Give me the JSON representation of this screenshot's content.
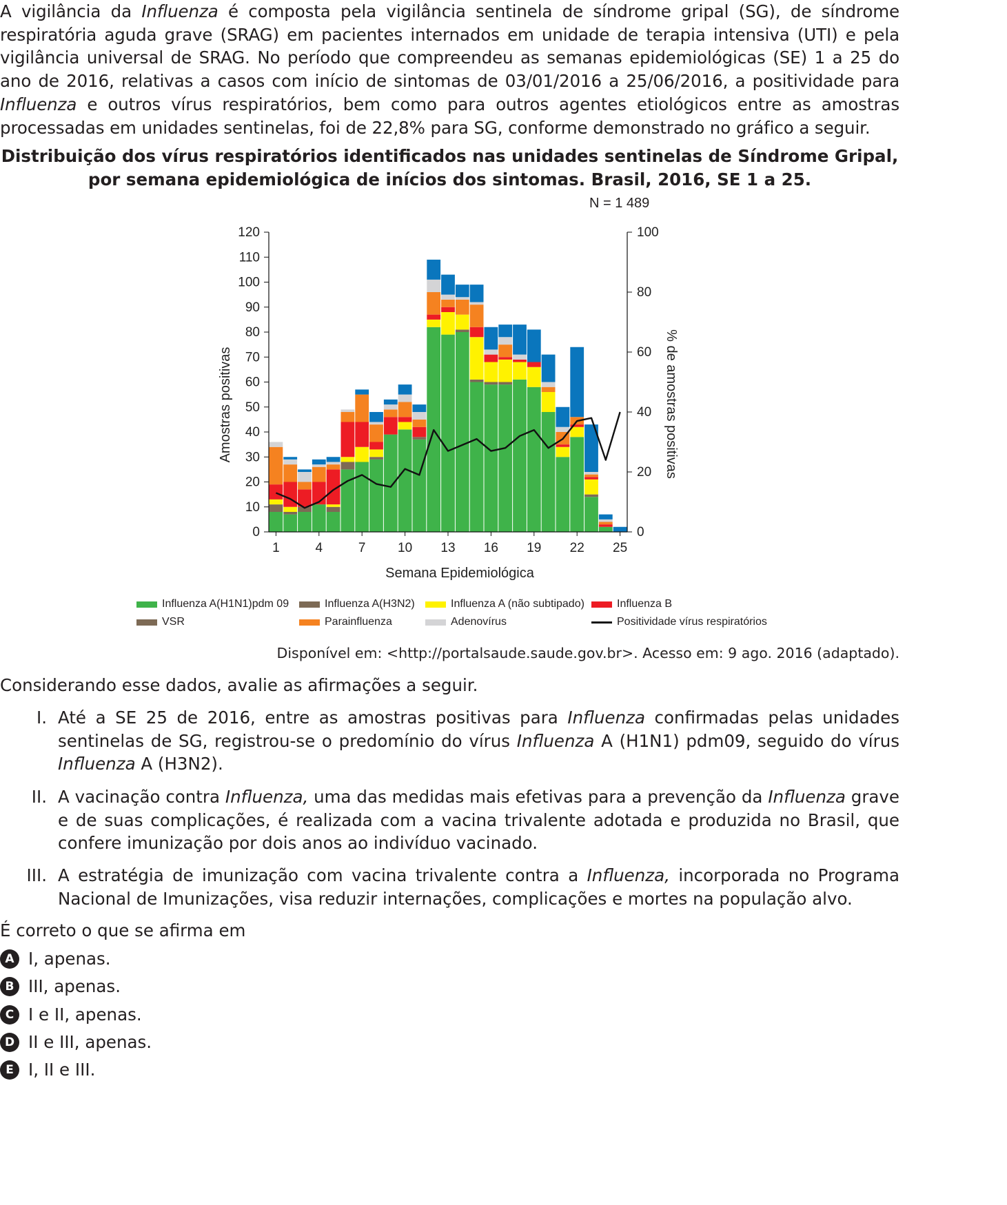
{
  "intro": {
    "p1": "A vigilância da ",
    "p2": "Influenza",
    "p3": " é composta pela vigilância sentinela de síndrome gripal (SG), de síndrome respiratória aguda grave (SRAG) em pacientes internados em unidade de terapia intensiva (UTI) e pela vigilância universal de SRAG. No período que compreendeu as semanas epidemiológicas (SE) 1 a 25 do ano de 2016, relativas a casos com início de sintomas de 03/01/2016 a 25/06/2016, a positividade para ",
    "p4": "Influenza",
    "p5": " e outros vírus respiratórios, bem como para outros agentes etiológicos entre as amostras processadas em unidades sentinelas, foi de 22,8% para SG, conforme demonstrado no gráfico a seguir."
  },
  "chart_title": {
    "line1": "Distribuição dos vírus respiratórios identificados nas unidades sentinelas de Síndrome Gripal,",
    "line2": "por semana epidemiológica de inícios dos sintomas. Brasil, 2016, SE 1 a 25."
  },
  "n_label": "N = 1 489",
  "chart_data": {
    "type": "bar",
    "stacked": true,
    "xlabel": "Semana Epidemiológica",
    "ylabel": "Amostras positivas",
    "y2label": "% de amostras positivas",
    "ylim": [
      0,
      120
    ],
    "y2lim": [
      0,
      100
    ],
    "yticks": [
      0,
      10,
      20,
      30,
      40,
      50,
      60,
      70,
      80,
      90,
      100,
      110,
      120
    ],
    "y2ticks": [
      0,
      20,
      40,
      60,
      80,
      100
    ],
    "x": [
      1,
      2,
      3,
      4,
      5,
      6,
      7,
      8,
      9,
      10,
      11,
      12,
      13,
      14,
      15,
      16,
      17,
      18,
      19,
      20,
      21,
      22,
      23,
      24,
      25
    ],
    "xticks": [
      1,
      4,
      7,
      10,
      13,
      16,
      19,
      22,
      25
    ],
    "grid": false,
    "legend_position": "bottom",
    "series": [
      {
        "name": "Influenza A(H1N1)pdm 09",
        "color": "#3fb34a",
        "values": [
          8,
          7,
          8,
          11,
          8,
          25,
          28,
          29,
          39,
          41,
          37,
          82,
          79,
          80,
          60,
          59,
          59,
          61,
          58,
          48,
          30,
          38,
          14,
          2,
          0
        ]
      },
      {
        "name": "Influenza A(H3N2)",
        "color": "#7d6a55",
        "values": [
          3,
          1,
          2,
          0,
          2,
          3,
          0,
          1,
          0,
          0,
          1,
          0,
          0,
          1,
          1,
          1,
          1,
          0,
          0,
          0,
          0,
          0,
          1,
          0,
          0
        ]
      },
      {
        "name": "VSR",
        "color": "#7d6a55",
        "values": [
          0,
          0,
          0,
          0,
          0,
          0,
          0,
          0,
          0,
          0,
          0,
          0,
          0,
          0,
          0,
          0,
          0,
          0,
          0,
          0,
          0,
          0,
          0,
          0,
          0
        ]
      },
      {
        "name": "Influenza A (não subtipado)",
        "color": "#fff200",
        "values": [
          2,
          2,
          0,
          0,
          1,
          2,
          6,
          3,
          0,
          3,
          0,
          3,
          9,
          6,
          17,
          8,
          9,
          7,
          8,
          8,
          4,
          4,
          6,
          0,
          0
        ]
      },
      {
        "name": "Influenza B",
        "color": "#ed1c24",
        "values": [
          6,
          10,
          7,
          9,
          14,
          14,
          10,
          3,
          7,
          2,
          4,
          2,
          2,
          0,
          4,
          3,
          1,
          1,
          2,
          0,
          1,
          1,
          1,
          1,
          0
        ]
      },
      {
        "name": "Parainfluenza",
        "color": "#f58220",
        "values": [
          15,
          7,
          3,
          6,
          2,
          4,
          11,
          7,
          3,
          6,
          3,
          9,
          3,
          6,
          9,
          0,
          5,
          0,
          0,
          2,
          5,
          3,
          1,
          1,
          0
        ]
      },
      {
        "name": "Adenovírus",
        "color": "#d4d4d6",
        "values": [
          2,
          2,
          4,
          1,
          1,
          1,
          0,
          1,
          2,
          3,
          3,
          5,
          2,
          1,
          1,
          2,
          3,
          2,
          0,
          2,
          2,
          0,
          1,
          1,
          0
        ]
      },
      {
        "name": "_other_blue",
        "color": "#0a76bd",
        "values": [
          0,
          1,
          1,
          2,
          2,
          0,
          2,
          4,
          2,
          4,
          3,
          8,
          8,
          5,
          7,
          9,
          5,
          12,
          13,
          11,
          8,
          28,
          19,
          2,
          2
        ]
      }
    ],
    "line_series": {
      "name": "Positividade vírus respiratórios",
      "color": "#111111",
      "axis": "right",
      "values": [
        13,
        11,
        8,
        10,
        14,
        17,
        19,
        16,
        15,
        21,
        19,
        34,
        27,
        29,
        31,
        27,
        28,
        32,
        34,
        28,
        31,
        37,
        38,
        24,
        40
      ]
    }
  },
  "legend": {
    "h1n1": "Influenza A(H1N1)pdm 09",
    "h3n2": "Influenza A(H3N2)",
    "nonsub": "Influenza A (não subtipado)",
    "flub": "Influenza B",
    "vsr": "VSR",
    "para": "Parainfluenza",
    "adeno": "Adenovírus",
    "line": "Positividade vírus respiratórios"
  },
  "source": "Disponível em: <http://portalsaude.saude.gov.br>. Acesso em: 9 ago. 2016 (adaptado).",
  "lead": "Considerando esse dados, avalie as afirmações a seguir.",
  "statements": [
    {
      "num": "I.",
      "a": "Até a SE 25 de 2016, entre as amostras positivas para ",
      "b": "Influenza",
      "c": " confirmadas pelas unidades sentinelas de SG, registrou-se o predomínio do vírus ",
      "d": "Influenza",
      "e": " A (H1N1) pdm09, seguido do vírus ",
      "f": "Influenza",
      "g": " A (H3N2)."
    },
    {
      "num": "II.",
      "a": "A vacinação contra ",
      "b": "Influenza,",
      "c": " uma das medidas mais efetivas para a prevenção da ",
      "d": "Influenza",
      "e": " grave e de suas complicações, é realizada com a vacina trivalente adotada e produzida no Brasil, que confere imunização por dois anos ao indivíduo vacinado.",
      "f": "",
      "g": ""
    },
    {
      "num": "III.",
      "a": "A estratégia de imunização com vacina trivalente contra a ",
      "b": "Influenza,",
      "c": " incorporada no Programa Nacional de Imunizações, visa reduzir internações, complicações e mortes na população alvo.",
      "d": "",
      "e": "",
      "f": "",
      "g": ""
    }
  ],
  "question": "É correto o que se afirma em",
  "options": [
    {
      "letter": "A",
      "text": "I, apenas."
    },
    {
      "letter": "B",
      "text": "III, apenas."
    },
    {
      "letter": "C",
      "text": "I e II, apenas."
    },
    {
      "letter": "D",
      "text": "II e III, apenas."
    },
    {
      "letter": "E",
      "text": "I, II e III."
    }
  ]
}
